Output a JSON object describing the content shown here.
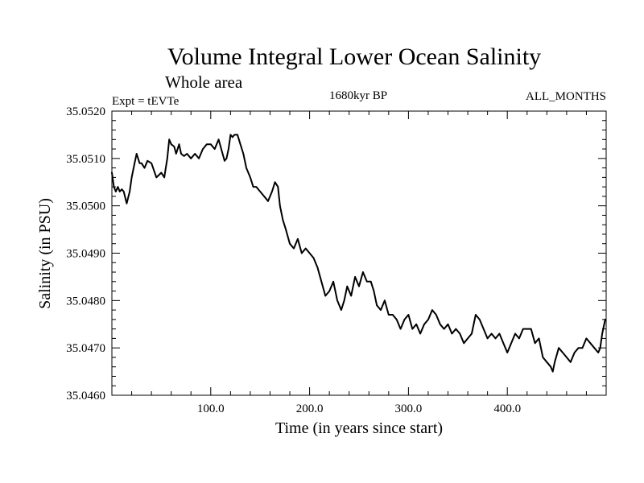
{
  "chart_data": {
    "type": "line",
    "title": "Volume Integral Lower Ocean Salinity",
    "subtitle": "Whole area",
    "annotations": {
      "experiment": "Expt = tEVTe",
      "period": "1680kyr BP",
      "months": "ALL_MONTHS"
    },
    "xlabel": "Time (in years since start)",
    "ylabel": "Salinity (in PSU)",
    "xlim": [
      0,
      500
    ],
    "ylim": [
      35.046,
      35.052
    ],
    "xticks": [
      {
        "value": 100,
        "label": "100.0"
      },
      {
        "value": 200,
        "label": "200.0"
      },
      {
        "value": 300,
        "label": "300.0"
      },
      {
        "value": 400,
        "label": "400.0"
      }
    ],
    "yticks": [
      {
        "value": 35.046,
        "label": "35.0460"
      },
      {
        "value": 35.047,
        "label": "35.0470"
      },
      {
        "value": 35.048,
        "label": "35.0480"
      },
      {
        "value": 35.049,
        "label": "35.0490"
      },
      {
        "value": 35.05,
        "label": "35.0500"
      },
      {
        "value": 35.051,
        "label": "35.0510"
      },
      {
        "value": 35.052,
        "label": "35.0520"
      }
    ],
    "grid": false,
    "series": [
      {
        "name": "Salinity",
        "color": "#000000",
        "x": [
          0,
          2,
          4,
          6,
          8,
          10,
          12,
          15,
          18,
          20,
          23,
          25,
          28,
          30,
          33,
          36,
          40,
          45,
          50,
          53,
          56,
          58,
          60,
          63,
          65,
          68,
          70,
          73,
          76,
          80,
          84,
          88,
          92,
          96,
          100,
          104,
          108,
          112,
          114,
          116,
          118,
          120,
          122,
          124,
          127,
          130,
          133,
          136,
          140,
          143,
          146,
          150,
          154,
          158,
          162,
          165,
          168,
          170,
          173,
          176,
          180,
          184,
          188,
          192,
          196,
          200,
          204,
          208,
          212,
          216,
          220,
          224,
          228,
          232,
          235,
          238,
          242,
          246,
          250,
          254,
          258,
          262,
          265,
          268,
          272,
          276,
          280,
          284,
          288,
          292,
          296,
          300,
          304,
          308,
          312,
          316,
          320,
          324,
          328,
          332,
          336,
          340,
          344,
          348,
          352,
          356,
          360,
          364,
          368,
          372,
          376,
          380,
          384,
          388,
          392,
          396,
          400,
          404,
          408,
          412,
          416,
          420,
          424,
          428,
          432,
          436,
          440,
          444,
          446,
          448,
          452,
          456,
          460,
          464,
          468,
          472,
          476,
          480,
          484,
          488,
          492,
          494,
          496,
          499
        ],
        "values": [
          35.0507,
          35.0504,
          35.0503,
          35.0504,
          35.0503,
          35.05035,
          35.0503,
          35.05005,
          35.0503,
          35.0506,
          35.0509,
          35.0511,
          35.0509,
          35.0509,
          35.0508,
          35.05095,
          35.0509,
          35.0506,
          35.0507,
          35.0506,
          35.051,
          35.0514,
          35.0513,
          35.05125,
          35.0511,
          35.0513,
          35.0511,
          35.05105,
          35.0511,
          35.051,
          35.0511,
          35.051,
          35.0512,
          35.0513,
          35.0513,
          35.0512,
          35.0514,
          35.0511,
          35.05095,
          35.051,
          35.0512,
          35.0515,
          35.05145,
          35.0515,
          35.0515,
          35.0513,
          35.0511,
          35.0508,
          35.0506,
          35.0504,
          35.0504,
          35.0503,
          35.0502,
          35.0501,
          35.0503,
          35.0505,
          35.0504,
          35.05,
          35.0497,
          35.0495,
          35.0492,
          35.0491,
          35.0493,
          35.049,
          35.0491,
          35.049,
          35.0489,
          35.0487,
          35.0484,
          35.0481,
          35.0482,
          35.0484,
          35.048,
          35.0478,
          35.048,
          35.0483,
          35.0481,
          35.0485,
          35.0483,
          35.0486,
          35.0484,
          35.0484,
          35.0482,
          35.0479,
          35.0478,
          35.048,
          35.0477,
          35.0477,
          35.0476,
          35.0474,
          35.0476,
          35.0477,
          35.0474,
          35.0475,
          35.0473,
          35.0475,
          35.0476,
          35.0478,
          35.0477,
          35.0475,
          35.0474,
          35.0475,
          35.0473,
          35.0474,
          35.0473,
          35.0471,
          35.0472,
          35.0473,
          35.0477,
          35.0476,
          35.0474,
          35.0472,
          35.0473,
          35.0472,
          35.0473,
          35.0471,
          35.0469,
          35.0471,
          35.0473,
          35.0472,
          35.0474,
          35.0474,
          35.0474,
          35.0471,
          35.0472,
          35.0468,
          35.0467,
          35.0466,
          35.0465,
          35.0467,
          35.047,
          35.0469,
          35.0468,
          35.0467,
          35.0469,
          35.047,
          35.047,
          35.0472,
          35.0471,
          35.047,
          35.0469,
          35.047,
          35.0473,
          35.0476
        ]
      }
    ]
  }
}
